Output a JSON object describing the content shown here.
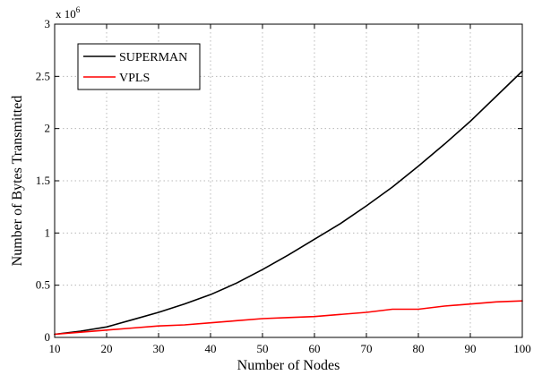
{
  "chart_data": {
    "type": "line",
    "xlabel": "Number of Nodes",
    "ylabel": "Number of Bytes Transmitted",
    "y_multiplier": {
      "base": "x 10",
      "exponent": "6"
    },
    "xlim": [
      10,
      100
    ],
    "ylim": [
      0,
      3
    ],
    "x_ticks": [
      10,
      20,
      30,
      40,
      50,
      60,
      70,
      80,
      90,
      100
    ],
    "y_ticks": [
      0,
      0.5,
      1,
      1.5,
      2,
      2.5,
      3
    ],
    "y_tick_labels": [
      "0",
      "0.5",
      "1",
      "1.5",
      "2",
      "2.5",
      "3"
    ],
    "grid": true,
    "legend_position": "top-left",
    "series": [
      {
        "name": "SUPERMAN",
        "color": "#000000",
        "x": [
          10,
          15,
          20,
          25,
          30,
          35,
          40,
          45,
          50,
          55,
          60,
          65,
          70,
          75,
          80,
          85,
          90,
          95,
          100
        ],
        "y": [
          0.03,
          0.06,
          0.1,
          0.17,
          0.24,
          0.32,
          0.41,
          0.52,
          0.65,
          0.79,
          0.94,
          1.09,
          1.26,
          1.44,
          1.64,
          1.85,
          2.07,
          2.31,
          2.55
        ]
      },
      {
        "name": "VPLS",
        "color": "#ff0000",
        "x": [
          10,
          15,
          20,
          25,
          30,
          35,
          40,
          45,
          50,
          55,
          60,
          65,
          70,
          75,
          80,
          85,
          90,
          95,
          100
        ],
        "y": [
          0.03,
          0.05,
          0.07,
          0.09,
          0.11,
          0.12,
          0.14,
          0.16,
          0.18,
          0.19,
          0.2,
          0.22,
          0.24,
          0.27,
          0.27,
          0.3,
          0.32,
          0.34,
          0.35
        ]
      }
    ]
  }
}
